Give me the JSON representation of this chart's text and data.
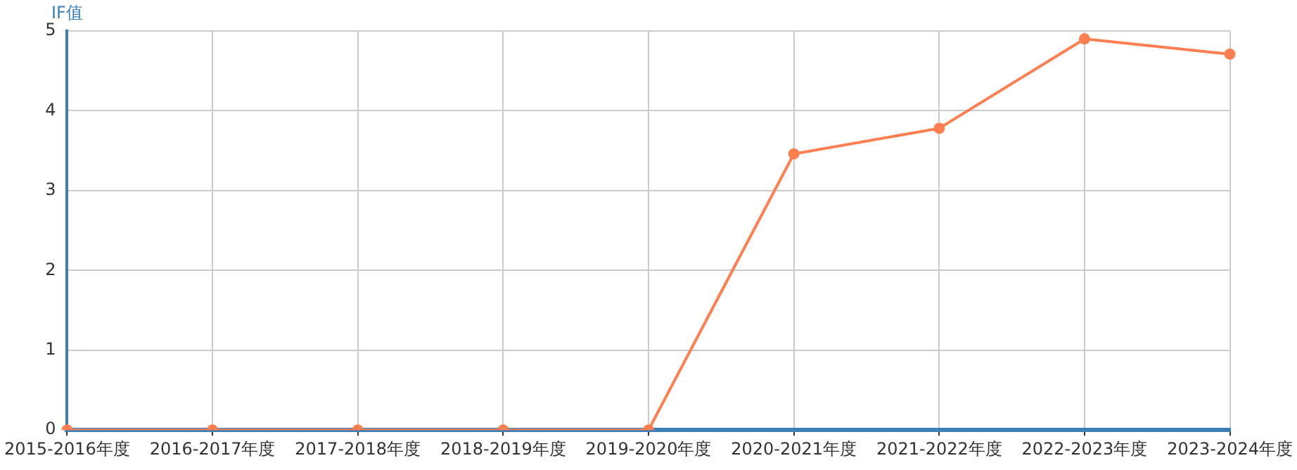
{
  "chart_data": {
    "type": "line",
    "ylabel": "IF值",
    "categories": [
      "2015-2016年度",
      "2016-2017年度",
      "2017-2018年度",
      "2018-2019年度",
      "2019-2020年度",
      "2020-2021年度",
      "2021-2022年度",
      "2022-2023年度",
      "2023-2024年度"
    ],
    "series": [
      {
        "color": "#ff7f50",
        "values": [
          0,
          0,
          0,
          0,
          0,
          3.46,
          3.78,
          4.9,
          4.71
        ]
      }
    ],
    "ylim": [
      0,
      5
    ],
    "yticks": [
      0,
      1,
      2,
      3,
      4,
      5
    ],
    "grid": true,
    "marker": "circle",
    "line_style": "solid",
    "legend": false
  }
}
